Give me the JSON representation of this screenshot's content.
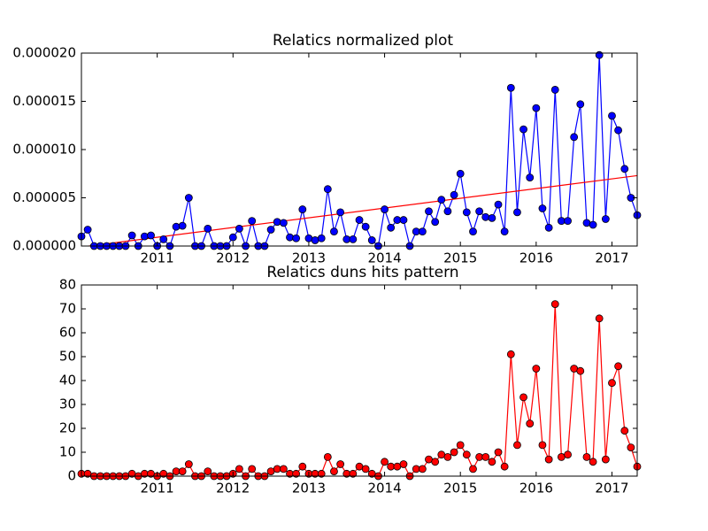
{
  "chart_data": [
    {
      "type": "line",
      "title": "Relatics normalized plot",
      "x": [
        2010.0,
        2010.083,
        2010.167,
        2010.25,
        2010.333,
        2010.417,
        2010.5,
        2010.583,
        2010.667,
        2010.75,
        2010.833,
        2010.917,
        2011.0,
        2011.083,
        2011.167,
        2011.25,
        2011.333,
        2011.417,
        2011.5,
        2011.583,
        2011.667,
        2011.75,
        2011.833,
        2011.917,
        2012.0,
        2012.083,
        2012.167,
        2012.25,
        2012.333,
        2012.417,
        2012.5,
        2012.583,
        2012.667,
        2012.75,
        2012.833,
        2012.917,
        2013.0,
        2013.083,
        2013.167,
        2013.25,
        2013.333,
        2013.417,
        2013.5,
        2013.583,
        2013.667,
        2013.75,
        2013.833,
        2013.917,
        2014.0,
        2014.083,
        2014.167,
        2014.25,
        2014.333,
        2014.417,
        2014.5,
        2014.583,
        2014.667,
        2014.75,
        2014.833,
        2014.917,
        2015.0,
        2015.083,
        2015.167,
        2015.25,
        2015.333,
        2015.417,
        2015.5,
        2015.583,
        2015.667,
        2015.75,
        2015.833,
        2015.917,
        2016.0,
        2016.083,
        2016.167,
        2016.25,
        2016.333,
        2016.417,
        2016.5,
        2016.583,
        2016.667,
        2016.75,
        2016.833,
        2016.917,
        2017.0,
        2017.083,
        2017.167,
        2017.25,
        2017.333
      ],
      "series": [
        {
          "color": "#0000ff",
          "markers": true,
          "values": [
            1e-06,
            1.7e-06,
            0,
            0,
            0,
            0,
            0,
            0,
            1.1e-06,
            0,
            1e-06,
            1.1e-06,
            0,
            7e-07,
            0,
            2e-06,
            2.1e-06,
            5e-06,
            0,
            0,
            1.8e-06,
            0,
            0,
            0,
            9e-07,
            1.8e-06,
            0,
            2.6e-06,
            0,
            0,
            1.7e-06,
            2.5e-06,
            2.4e-06,
            9e-07,
            8e-07,
            3.8e-06,
            8e-07,
            6e-07,
            8e-07,
            5.9e-06,
            1.5e-06,
            3.5e-06,
            7e-07,
            7e-07,
            2.7e-06,
            2e-06,
            6e-07,
            0,
            3.8e-06,
            1.9e-06,
            2.7e-06,
            2.7e-06,
            0,
            1.5e-06,
            1.5e-06,
            3.6e-06,
            2.5e-06,
            4.8e-06,
            3.6e-06,
            5.3e-06,
            7.5e-06,
            3.5e-06,
            1.5e-06,
            3.6e-06,
            3e-06,
            2.9e-06,
            4.3e-06,
            1.5e-06,
            1.64e-05,
            3.5e-06,
            1.21e-05,
            7.1e-06,
            1.43e-05,
            3.9e-06,
            1.9e-06,
            1.62e-05,
            2.6e-06,
            2.6e-06,
            1.13e-05,
            1.47e-05,
            2.4e-06,
            2.2e-06,
            1.98e-05,
            2.8e-06,
            1.35e-05,
            1.2e-05,
            8e-06,
            5e-06,
            3.2e-06
          ]
        },
        {
          "color": "#ff0000",
          "markers": false,
          "x": [
            2010.0,
            2017.333
          ],
          "values": [
            -1e-07,
            7.3e-06
          ]
        }
      ],
      "xlim": [
        2010.0,
        2017.333
      ],
      "xticks": [
        2011,
        2012,
        2013,
        2014,
        2015,
        2016,
        2017
      ],
      "ylim": [
        0,
        2e-05
      ],
      "yticks": [
        {
          "value": 0,
          "label": "0.000000"
        },
        {
          "value": 5e-06,
          "label": "0.000005"
        },
        {
          "value": 1e-05,
          "label": "0.000010"
        },
        {
          "value": 1.5e-05,
          "label": "0.000015"
        },
        {
          "value": 2e-05,
          "label": "0.000020"
        }
      ]
    },
    {
      "type": "line",
      "title": "Relatics duns hits pattern",
      "x": [
        2010.0,
        2010.083,
        2010.167,
        2010.25,
        2010.333,
        2010.417,
        2010.5,
        2010.583,
        2010.667,
        2010.75,
        2010.833,
        2010.917,
        2011.0,
        2011.083,
        2011.167,
        2011.25,
        2011.333,
        2011.417,
        2011.5,
        2011.583,
        2011.667,
        2011.75,
        2011.833,
        2011.917,
        2012.0,
        2012.083,
        2012.167,
        2012.25,
        2012.333,
        2012.417,
        2012.5,
        2012.583,
        2012.667,
        2012.75,
        2012.833,
        2012.917,
        2013.0,
        2013.083,
        2013.167,
        2013.25,
        2013.333,
        2013.417,
        2013.5,
        2013.583,
        2013.667,
        2013.75,
        2013.833,
        2013.917,
        2014.0,
        2014.083,
        2014.167,
        2014.25,
        2014.333,
        2014.417,
        2014.5,
        2014.583,
        2014.667,
        2014.75,
        2014.833,
        2014.917,
        2015.0,
        2015.083,
        2015.167,
        2015.25,
        2015.333,
        2015.417,
        2015.5,
        2015.583,
        2015.667,
        2015.75,
        2015.833,
        2015.917,
        2016.0,
        2016.083,
        2016.167,
        2016.25,
        2016.333,
        2016.417,
        2016.5,
        2016.583,
        2016.667,
        2016.75,
        2016.833,
        2016.917,
        2017.0,
        2017.083,
        2017.167,
        2017.25,
        2017.333
      ],
      "series": [
        {
          "color": "#ff0000",
          "markers": true,
          "values": [
            1,
            1,
            0,
            0,
            0,
            0,
            0,
            0,
            1,
            0,
            1,
            1,
            0,
            1,
            0,
            2,
            2,
            5,
            0,
            0,
            2,
            0,
            0,
            0,
            1,
            3,
            0,
            3,
            0,
            0,
            2,
            3,
            3,
            1,
            1,
            4,
            1,
            1,
            1,
            8,
            2,
            5,
            1,
            1,
            4,
            3,
            1,
            0,
            6,
            4,
            4,
            5,
            0,
            3,
            3,
            7,
            6,
            9,
            8,
            10,
            13,
            9,
            3,
            8,
            8,
            6,
            10,
            4,
            51,
            13,
            33,
            22,
            45,
            13,
            7,
            72,
            8,
            9,
            45,
            44,
            8,
            6,
            66,
            7,
            39,
            46,
            19,
            12,
            4
          ]
        }
      ],
      "xlim": [
        2010.0,
        2017.333
      ],
      "xticks": [
        2011,
        2012,
        2013,
        2014,
        2015,
        2016,
        2017
      ],
      "ylim": [
        0,
        80
      ],
      "yticks": [
        0,
        10,
        20,
        30,
        40,
        50,
        60,
        70,
        80
      ]
    }
  ]
}
